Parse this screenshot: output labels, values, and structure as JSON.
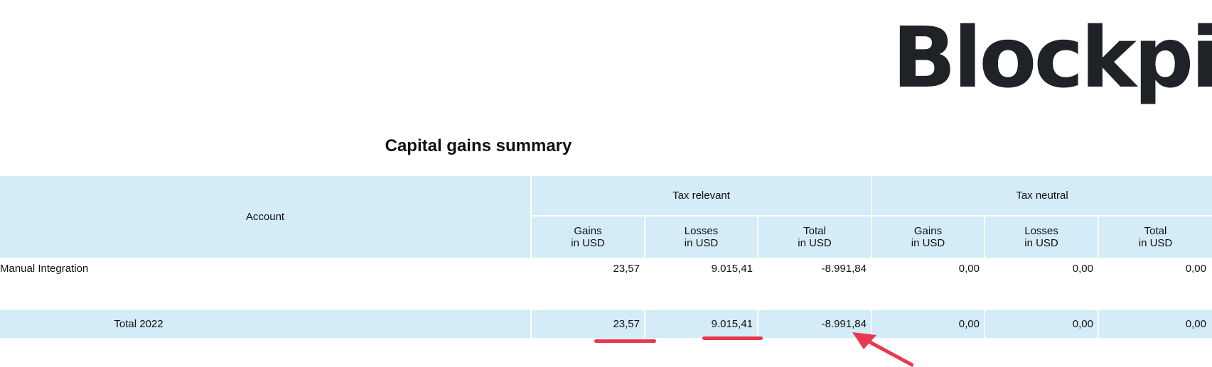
{
  "logo": "Blockpit",
  "title": "Capital gains summary",
  "table": {
    "header": {
      "account": "Account",
      "groups": [
        "Tax relevant",
        "Tax neutral"
      ],
      "columns": [
        "Gains\nin USD",
        "Losses\nin USD",
        "Total\nin USD",
        "Gains\nin USD",
        "Losses\nin USD",
        "Total\nin USD"
      ]
    },
    "rows": [
      [
        "Manual Integration",
        "23,57",
        "9.015,41",
        "-8.991,84",
        "0,00",
        "0,00",
        "0,00"
      ],
      [
        "Total 2022",
        "23,57",
        "9.015,41",
        "-8.991,84",
        "0,00",
        "0,00",
        "0,00"
      ]
    ]
  }
}
